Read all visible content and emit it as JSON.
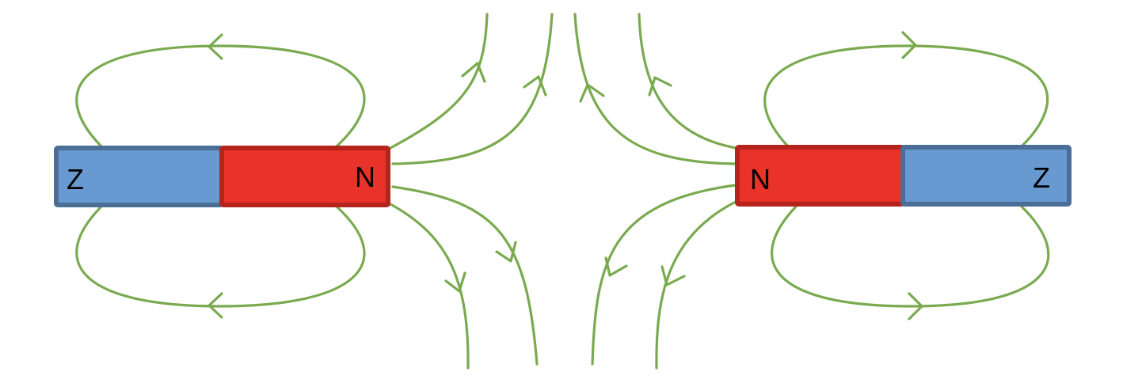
{
  "colors": {
    "north_pole_fill": "#E8322A",
    "north_pole_border": "#B5231D",
    "south_pole_fill": "#6899D0",
    "south_pole_border": "#4A6E96",
    "field_line": "#7AAA50",
    "background": "#FFFFFF"
  },
  "left_magnet": {
    "south_label": "Z",
    "north_label": "N"
  },
  "right_magnet": {
    "north_label": "N",
    "south_label": "Z"
  }
}
